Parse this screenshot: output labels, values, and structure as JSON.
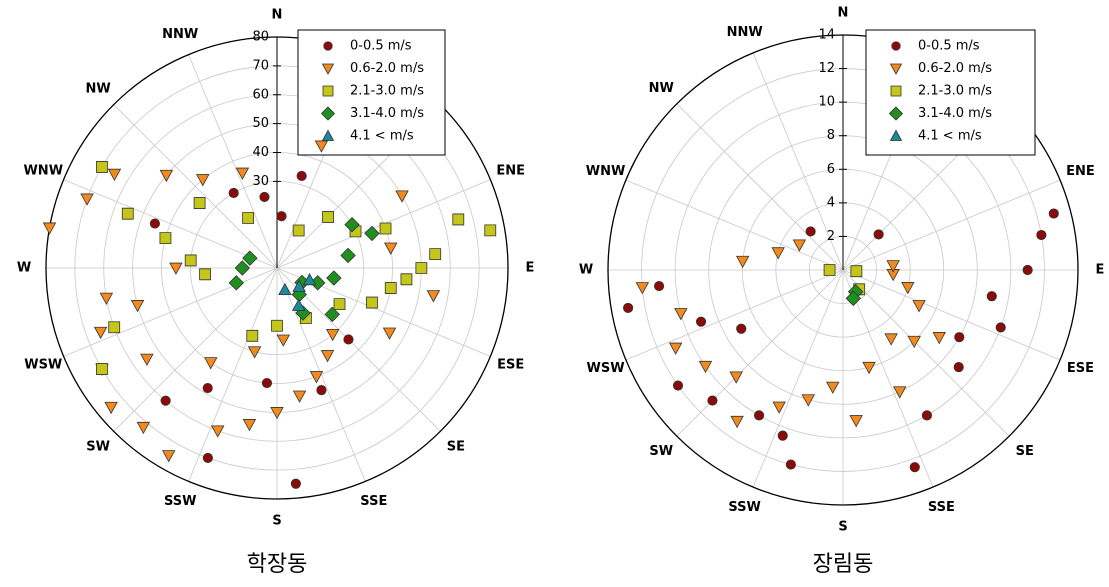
{
  "chart_data": [
    {
      "type": "polar_scatter",
      "title": "학장동",
      "directions": [
        "N",
        null,
        null,
        "ENE",
        "E",
        "ESE",
        "SE",
        "SSE",
        "S",
        "SSW",
        "SW",
        "WSW",
        "W",
        "WNW",
        "NW",
        "NNW"
      ],
      "rlim": [
        0,
        80
      ],
      "rticks": [
        30,
        40,
        50,
        60,
        70,
        80
      ],
      "legend": "upper right",
      "series": [
        {
          "name": "0-0.5 m/s",
          "color": "#8b0a0a",
          "marker": "circle",
          "x": [
            15,
            200,
            175,
            160,
            290,
            330,
            5,
            185,
            210,
            350,
            135,
            220
          ],
          "values": [
            33,
            70,
            75,
            45,
            45,
            30,
            18,
            40,
            48,
            25,
            35,
            60
          ]
        },
        {
          "name": "0.6-2.0 m/s",
          "color": "#f28a1e",
          "marker": "triangle-down",
          "x": [
            280,
            290,
            300,
            260,
            250,
            240,
            230,
            220,
            210,
            200,
            190,
            180,
            170,
            160,
            150,
            140,
            120,
            100,
            80,
            60,
            20,
            340,
            320,
            310,
            270,
            255,
            235,
            215,
            195,
            175
          ],
          "values": [
            80,
            70,
            65,
            60,
            65,
            70,
            75,
            72,
            75,
            60,
            55,
            50,
            45,
            40,
            35,
            30,
            45,
            55,
            40,
            50,
            45,
            35,
            40,
            50,
            35,
            50,
            55,
            40,
            30,
            25
          ]
        },
        {
          "name": "2.1-3.0 m/s",
          "color": "#c5c51a",
          "marker": "square",
          "x": [
            300,
            290,
            285,
            275,
            265,
            80,
            75,
            85,
            90,
            95,
            100,
            70,
            65,
            110,
            120,
            250,
            240,
            200,
            180,
            150,
            310,
            330,
            30,
            45
          ],
          "values": [
            70,
            55,
            40,
            30,
            25,
            75,
            65,
            55,
            50,
            45,
            40,
            40,
            30,
            35,
            25,
            60,
            70,
            25,
            20,
            20,
            35,
            20,
            15,
            25
          ]
        },
        {
          "name": "3.1-4.0 m/s",
          "color": "#1f8f1f",
          "marker": "diamond",
          "x": [
            290,
            270,
            250,
            120,
            110,
            100,
            80,
            70,
            60,
            140,
            150,
            130
          ],
          "values": [
            10,
            12,
            15,
            10,
            15,
            20,
            25,
            35,
            30,
            12,
            18,
            25
          ]
        },
        {
          "name": "4.1 < m/s",
          "color": "#1a8a9a",
          "marker": "triangle-up",
          "x": [
            110,
            130,
            160,
            150
          ],
          "values": [
            12,
            10,
            8,
            15
          ]
        }
      ]
    },
    {
      "type": "polar_scatter",
      "title": "장림동",
      "directions": [
        "N",
        null,
        null,
        "ENE",
        "E",
        "ESE",
        "SE",
        "SSE",
        "S",
        "SSW",
        "SW",
        "WSW",
        "W",
        "WNW",
        "NW",
        "NNW"
      ],
      "rlim": [
        0,
        14
      ],
      "rticks": [
        2,
        4,
        6,
        8,
        10,
        12,
        14
      ],
      "legend": "upper right",
      "series": [
        {
          "name": "0-0.5 m/s",
          "color": "#8b0a0a",
          "marker": "circle",
          "x": [
            75,
            80,
            260,
            265,
            235,
            225,
            210,
            200,
            195,
            160,
            150,
            130,
            120,
            110,
            90,
            100,
            250,
            240,
            320,
            45
          ],
          "values": [
            13,
            12,
            13,
            11,
            12,
            11,
            10,
            10.5,
            12,
            12.5,
            10,
            9,
            8,
            10,
            11,
            9,
            9,
            7,
            3,
            3
          ]
        },
        {
          "name": "0.6-2.0 m/s",
          "color": "#f28a1e",
          "marker": "triangle-down",
          "x": [
            265,
            255,
            245,
            235,
            225,
            215,
            205,
            195,
            185,
            175,
            165,
            155,
            145,
            135,
            125,
            115,
            105,
            95,
            85,
            275,
            285,
            300
          ],
          "values": [
            12,
            10,
            11,
            10,
            9,
            11,
            9,
            8,
            7,
            9,
            6,
            8,
            5,
            6,
            7,
            5,
            4,
            3,
            3,
            6,
            4,
            3
          ]
        },
        {
          "name": "2.1-3.0 m/s",
          "color": "#c5c51a",
          "marker": "square",
          "x": [
            95,
            140,
            270
          ],
          "values": [
            0.8,
            1.5,
            0.8
          ]
        },
        {
          "name": "3.1-4.0 m/s",
          "color": "#1f8f1f",
          "marker": "diamond",
          "x": [
            150,
            160
          ],
          "values": [
            1.5,
            1.8
          ]
        },
        {
          "name": "4.1 < m/s",
          "color": "#1a8a9a",
          "marker": "triangle-up",
          "x": [],
          "values": []
        }
      ]
    }
  ]
}
